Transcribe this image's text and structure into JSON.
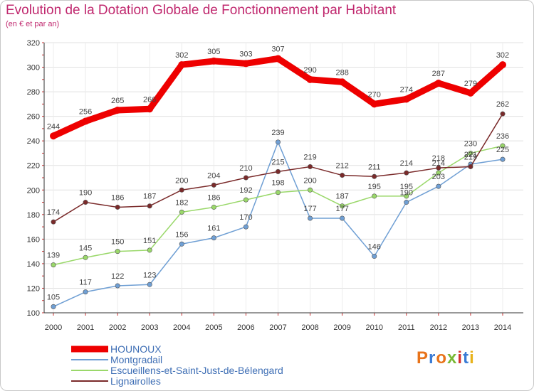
{
  "title": "Evolution de la Dotation Globale de Fonctionnement par Habitant",
  "subtitle": "(en € et par an)",
  "logo": {
    "text": "Proxiti",
    "colors": [
      "#e8731a",
      "#3a7bd5",
      "#e8731a",
      "#79b835",
      "#d62f2f",
      "#3a7bd5",
      "#e8b21a"
    ]
  },
  "chart_data": {
    "type": "line",
    "title": "Evolution de la Dotation Globale de Fonctionnement par Habitant",
    "subtitle": "(en € et par an)",
    "xlabel": "",
    "ylabel": "",
    "ylim": [
      100,
      320
    ],
    "yticks": [
      100,
      120,
      140,
      160,
      180,
      200,
      220,
      240,
      260,
      280,
      300,
      320
    ],
    "grid": true,
    "legend_position": "bottom-left",
    "categories": [
      "2000",
      "2001",
      "2002",
      "2003",
      "2004",
      "2005",
      "2006",
      "2007",
      "2008",
      "2009",
      "2010",
      "2011",
      "2012",
      "2013",
      "2014"
    ],
    "series": [
      {
        "name": "HOUNOUX",
        "color": "#ee0000",
        "emphasis": true,
        "values": [
          244,
          256,
          265,
          266,
          302,
          305,
          303,
          307,
          290,
          288,
          270,
          274,
          287,
          279,
          302
        ]
      },
      {
        "name": "Montgradail",
        "color": "#6f9fd4",
        "emphasis": false,
        "values": [
          105,
          117,
          122,
          123,
          156,
          161,
          170,
          239,
          177,
          177,
          146,
          190,
          203,
          221,
          225
        ]
      },
      {
        "name": "Escueillens-et-Saint-Just-de-Bélengard",
        "color": "#9ad86a",
        "emphasis": false,
        "values": [
          139,
          145,
          150,
          151,
          182,
          186,
          192,
          198,
          200,
          187,
          195,
          195,
          214,
          230,
          236
        ]
      },
      {
        "name": "Lignairolles",
        "color": "#7a2a2a",
        "emphasis": false,
        "values": [
          174,
          190,
          186,
          187,
          200,
          204,
          210,
          215,
          219,
          212,
          211,
          214,
          218,
          219,
          262
        ]
      }
    ]
  }
}
